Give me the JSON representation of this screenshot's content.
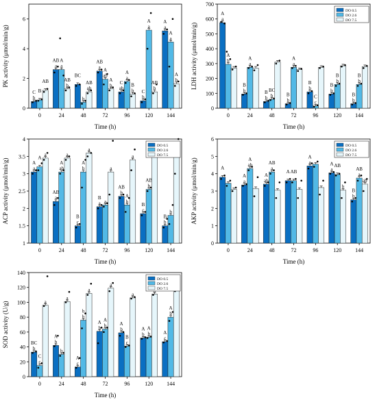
{
  "chart_data": [
    {
      "type": "bar",
      "id": "pk",
      "ylabel": "PK activity (μmol/min/g)",
      "xlabel": "Time (h)",
      "ylim": [
        0,
        7
      ],
      "yticks": [
        0,
        2,
        4,
        6
      ],
      "categories": [
        "0",
        "24",
        "48",
        "72",
        "96",
        "120",
        "144"
      ],
      "legend": [
        "DO 0.5",
        "DO 2.6",
        "DO 7.5"
      ],
      "legend_position": "none",
      "series": [
        {
          "name": "DO 0.5",
          "values": [
            0.45,
            2.6,
            1.6,
            2.5,
            1.1,
            0.5,
            5.2
          ]
        },
        {
          "name": "DO 2.6",
          "values": [
            0.55,
            2.6,
            0.4,
            1.95,
            1.8,
            5.25,
            4.45
          ]
        },
        {
          "name": "DO 7.5",
          "values": [
            1.2,
            1.3,
            1.1,
            1.3,
            0.95,
            1.1,
            1.65
          ]
        }
      ],
      "labels": [
        [
          "C\nb",
          "AB\na",
          "BC\n",
          "AB\na",
          "C\nab",
          "C\nb",
          "A\na"
        ],
        [
          "B\n",
          "A\na",
          "\nb",
          "A\nab",
          "A\na",
          "A\na",
          "A\na"
        ],
        [
          "AB\n",
          "AB\nb",
          "AB\nab",
          "A\nb",
          "B\nb",
          "AB\nb",
          "A\nb"
        ]
      ],
      "points": [
        [
          [
            0.4,
            0.5
          ],
          [
            2.4,
            2.8
          ],
          [
            1.5,
            1.6
          ],
          [
            2.4,
            2.6
          ],
          [
            1.0,
            1.2
          ],
          [
            0.4,
            0.6
          ],
          [
            5.0,
            5.3
          ]
        ],
        [
          [
            0.5,
            0.6
          ],
          [
            4.7,
            2.2
          ],
          [
            0.3,
            0.5
          ],
          [
            1.6,
            2.3
          ],
          [
            1.7,
            1.9
          ],
          [
            4.0,
            6.4
          ],
          [
            2.8,
            6.0
          ]
        ],
        [
          [
            1.1,
            1.3
          ],
          [
            1.2,
            1.4
          ],
          [
            1.0,
            1.2
          ],
          [
            1.2,
            1.4
          ],
          [
            0.8,
            1.0
          ],
          [
            1.0,
            1.6
          ],
          [
            1.5,
            1.8
          ]
        ]
      ]
    },
    {
      "type": "bar",
      "id": "ldh",
      "ylabel": "LDH activity (μmol/min/g)",
      "xlabel": "Time (h)",
      "ylim": [
        0,
        700
      ],
      "yticks": [
        0,
        100,
        200,
        300,
        400,
        500,
        600,
        700
      ],
      "categories": [
        "0",
        "24",
        "48",
        "72",
        "96",
        "120",
        "144"
      ],
      "legend": [
        "DO 0.5",
        "DO 2.6",
        "DO 7.5"
      ],
      "legend_position": "top-right",
      "series": [
        {
          "name": "DO 0.5",
          "values": [
            575,
            95,
            45,
            30,
            110,
            95,
            30
          ]
        },
        {
          "name": "DO 2.6",
          "values": [
            295,
            275,
            60,
            275,
            15,
            160,
            160
          ]
        },
        {
          "name": "DO 7.5",
          "values": [
            270,
            270,
            310,
            260,
            275,
            285,
            280
          ]
        }
      ],
      "labels": [
        [
          "A\na",
          "B\nb",
          "B\nb",
          "B\nb",
          "B\nb",
          "B\nb",
          "B\nb"
        ],
        [
          "A\nb",
          "A\na",
          "BC\nb",
          "A\na",
          "C\nc",
          "B\nb",
          "B\nb"
        ],
        [
          "",
          "",
          "",
          "",
          "",
          "",
          ""
        ]
      ],
      "points": [
        [
          [
            580,
            570
          ],
          [
            90,
            100
          ],
          [
            40,
            50
          ],
          [
            25,
            35
          ],
          [
            100,
            115
          ],
          [
            90,
            100
          ],
          [
            25,
            35
          ]
        ],
        [
          [
            380,
            330
          ],
          [
            270,
            280
          ],
          [
            55,
            65
          ],
          [
            270,
            285
          ],
          [
            10,
            20
          ],
          [
            150,
            165
          ],
          [
            150,
            165
          ]
        ],
        [
          [
            260,
            280
          ],
          [
            255,
            290
          ],
          [
            300,
            320
          ],
          [
            250,
            265
          ],
          [
            270,
            280
          ],
          [
            280,
            290
          ],
          [
            270,
            285
          ]
        ]
      ]
    },
    {
      "type": "bar",
      "id": "acp",
      "ylabel": "ACP activity (μmol/min/g)",
      "xlabel": "Time (h)",
      "ylim": [
        1.0,
        4.0
      ],
      "yticks": [
        1.0,
        1.5,
        2.0,
        2.5,
        3.0,
        3.5,
        4.0
      ],
      "categories": [
        "0",
        "24",
        "48",
        "72",
        "96",
        "120",
        "144"
      ],
      "legend": [
        "DO 0.5",
        "DO 2.6",
        "DO 7.5"
      ],
      "legend_position": "top-right",
      "series": [
        {
          "name": "DO 0.5",
          "values": [
            3.05,
            2.2,
            1.5,
            2.05,
            2.35,
            1.85,
            1.5
          ]
        },
        {
          "name": "DO 2.6",
          "values": [
            3.2,
            3.05,
            3.05,
            2.1,
            2.1,
            2.55,
            1.8
          ]
        },
        {
          "name": "DO 7.5",
          "values": [
            3.45,
            3.45,
            3.6,
            3.05,
            3.4,
            3.55,
            3.55
          ]
        }
      ],
      "labels": [
        [
          "A\na",
          "AB\na",
          "B\nc",
          "B\na",
          "AB\nb",
          "B\nc",
          "B\nb"
        ],
        [
          "A\n",
          "A\nab",
          "A\nb",
          "\na",
          "A\nb",
          "AB\nb",
          "\nb"
        ],
        [
          "\na",
          "\na",
          "\na",
          "\na",
          "\na",
          "\na",
          "\na"
        ]
      ],
      "points": [
        [
          [
            3.0,
            3.1
          ],
          [
            2.1,
            2.3
          ],
          [
            1.45,
            1.55
          ],
          [
            2.0,
            2.1
          ],
          [
            2.3,
            2.4
          ],
          [
            1.8,
            1.9
          ],
          [
            1.45,
            1.7
          ]
        ],
        [
          [
            3.1,
            3.3
          ],
          [
            3.0,
            3.1
          ],
          [
            2.6,
            3.4
          ],
          [
            2.05,
            2.15
          ],
          [
            1.9,
            2.3
          ],
          [
            2.5,
            2.6
          ],
          [
            1.55,
            2.1
          ]
        ],
        [
          [
            3.4,
            3.6
          ],
          [
            3.4,
            3.5
          ],
          [
            3.5,
            3.6
          ],
          [
            2.4,
            3.95
          ],
          [
            3.1,
            3.7
          ],
          [
            3.5,
            3.65
          ],
          [
            3.0,
            4.0
          ]
        ]
      ]
    },
    {
      "type": "bar",
      "id": "akp",
      "ylabel": "AKP activity (μmol/min/g)",
      "xlabel": "Time (h)",
      "ylim": [
        0,
        6
      ],
      "yticks": [
        0,
        1,
        2,
        3,
        4,
        5,
        6
      ],
      "categories": [
        "0",
        "24",
        "48",
        "72",
        "96",
        "120",
        "144"
      ],
      "legend": [
        "DO 0.5",
        "DO 2.6",
        "DO 7.5"
      ],
      "legend_position": "top-right",
      "series": [
        {
          "name": "DO 0.5",
          "values": [
            3.8,
            3.35,
            3.4,
            3.6,
            4.45,
            4.05,
            2.5
          ]
        },
        {
          "name": "DO 2.6",
          "values": [
            3.45,
            4.3,
            4.1,
            3.6,
            4.55,
            3.95,
            3.75
          ]
        },
        {
          "name": "DO 7.5",
          "values": [
            3.1,
            3.15,
            3.05,
            3.1,
            3.2,
            3.05,
            3.4
          ]
        }
      ],
      "labels": [
        [
          "A\n",
          "A\na",
          "A\nab",
          "A\n",
          "A\na",
          "A\na",
          "B\nb"
        ],
        [
          "",
          "A\nab",
          "AB\na",
          "AB\n",
          "",
          "AB\n",
          "AB\na"
        ],
        [
          "",
          "",
          "",
          "",
          "",
          "b",
          "ab"
        ]
      ],
      "points": [
        [
          [
            3.7,
            3.9
          ],
          [
            3.3,
            3.4
          ],
          [
            3.3,
            3.5
          ],
          [
            3.5,
            3.7
          ],
          [
            4.3,
            4.6
          ],
          [
            4.0,
            4.1
          ],
          [
            2.4,
            2.6
          ]
        ],
        [
          [
            3.3,
            3.6
          ],
          [
            4.2,
            4.4
          ],
          [
            4.0,
            4.2
          ],
          [
            3.5,
            3.7
          ],
          [
            4.4,
            4.7
          ],
          [
            3.9,
            4.0
          ],
          [
            3.6,
            3.9
          ]
        ],
        [
          [
            3.0,
            3.2
          ],
          [
            2.7,
            3.8
          ],
          [
            2.6,
            3.5
          ],
          [
            2.6,
            3.6
          ],
          [
            2.8,
            3.6
          ],
          [
            2.6,
            3.5
          ],
          [
            3.0,
            3.7
          ]
        ]
      ]
    },
    {
      "type": "bar",
      "id": "sod",
      "ylabel": "SOD activity (U/g)",
      "xlabel": "Time (h)",
      "ylim": [
        0,
        140
      ],
      "yticks": [
        0,
        20,
        40,
        60,
        80,
        100,
        120,
        140
      ],
      "categories": [
        "0",
        "24",
        "48",
        "72",
        "96",
        "120",
        "144"
      ],
      "legend": [
        "DO 0.5",
        "DO 2.6",
        "DO 7.5"
      ],
      "legend_position": "top-right",
      "series": [
        {
          "name": "DO 0.5",
          "values": [
            33,
            42,
            13,
            61,
            59,
            52,
            47
          ]
        },
        {
          "name": "DO 2.6",
          "values": [
            15,
            30,
            76,
            64,
            41,
            53,
            80
          ]
        },
        {
          "name": "DO 7.5",
          "values": [
            96,
            101,
            112,
            119,
            106,
            111,
            116
          ]
        }
      ],
      "labels": [
        [
          "BC\nb",
          "A\nb",
          "A\nc",
          "A\nb",
          "A\nb",
          "A\nb",
          "A\nc"
        ],
        [
          "C\nc",
          "b",
          "b\nb",
          "A\nb",
          "B\nc",
          "A\nb",
          "A\nb"
        ],
        [
          "\na",
          "\na",
          "\na",
          "\na",
          "\na",
          "\na",
          "\na"
        ]
      ],
      "points": [
        [
          [
            32,
            34
          ],
          [
            41,
            55
          ],
          [
            12,
            25
          ],
          [
            45,
            66
          ],
          [
            55,
            60
          ],
          [
            51,
            53
          ],
          [
            46,
            48
          ]
        ],
        [
          [
            12,
            18
          ],
          [
            28,
            32
          ],
          [
            65,
            85
          ],
          [
            60,
            66
          ],
          [
            40,
            42
          ],
          [
            52,
            54
          ],
          [
            75,
            87
          ]
        ],
        [
          [
            95,
            135
          ],
          [
            100,
            114
          ],
          [
            110,
            125
          ],
          [
            115,
            126
          ],
          [
            105,
            107
          ],
          [
            110,
            125
          ],
          [
            115,
            117
          ]
        ]
      ]
    }
  ]
}
